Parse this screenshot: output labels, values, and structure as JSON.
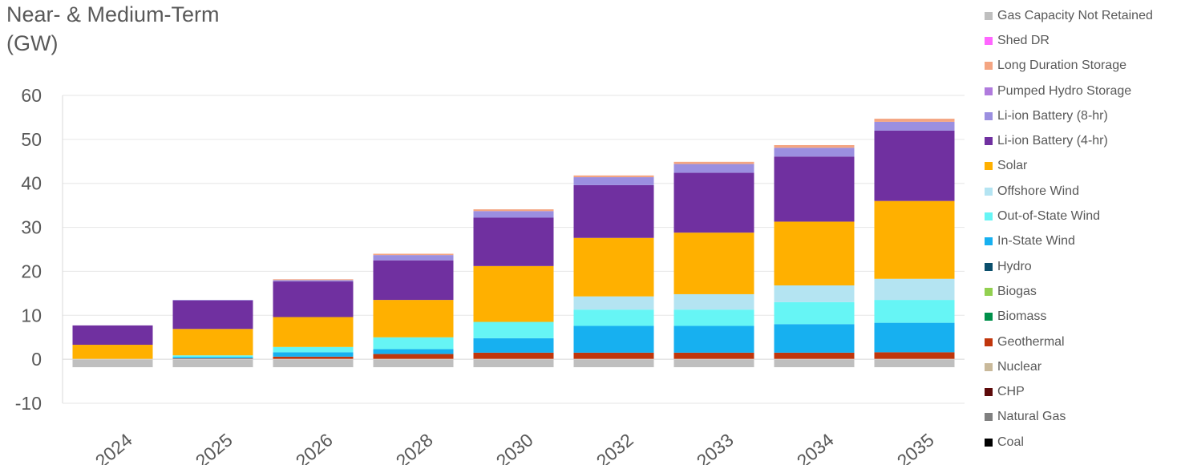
{
  "chart_data": {
    "type": "bar",
    "stacked": true,
    "title": "Near- & Medium-Term\n(GW)",
    "categories": [
      "2024",
      "2025",
      "2026",
      "2028",
      "2030",
      "2032",
      "2033",
      "2034",
      "2035"
    ],
    "ylim": [
      -10,
      60
    ],
    "yticks": [
      -10,
      0,
      10,
      20,
      30,
      40,
      50,
      60
    ],
    "grid": true,
    "legend_position": "right",
    "series": [
      {
        "name": "Gas Capacity Not Retained",
        "color": "#BFBFBF",
        "values": [
          -1.8,
          -1.8,
          -1.8,
          -1.8,
          -1.8,
          -1.8,
          -1.8,
          -1.8,
          -1.8
        ]
      },
      {
        "name": "Shed DR",
        "color": "#FF66FF",
        "values": [
          0,
          0,
          0,
          0,
          0,
          0,
          0,
          0,
          0
        ]
      },
      {
        "name": "Long Duration Storage",
        "color": "#F4A582",
        "values": [
          0,
          0,
          0.2,
          0.3,
          0.4,
          0.4,
          0.5,
          0.6,
          0.7
        ]
      },
      {
        "name": "Pumped Hydro Storage",
        "color": "#B07BDD",
        "values": [
          0,
          0,
          0,
          0,
          0,
          0,
          0,
          0,
          0
        ]
      },
      {
        "name": "Li-ion Battery (8-hr)",
        "color": "#9B8FE0",
        "values": [
          0,
          0.1,
          0.3,
          1.2,
          1.5,
          1.8,
          2.0,
          2.0,
          2.0
        ]
      },
      {
        "name": "Li-ion Battery (4-hr)",
        "color": "#7030A0",
        "values": [
          4.4,
          6.5,
          8.1,
          9.0,
          11.0,
          12.0,
          13.6,
          14.8,
          16.0
        ]
      },
      {
        "name": "Solar",
        "color": "#FFB000",
        "values": [
          3.3,
          6.0,
          6.8,
          8.5,
          12.7,
          13.3,
          14.0,
          14.5,
          17.7
        ]
      },
      {
        "name": "Offshore Wind",
        "color": "#B4E4F2",
        "values": [
          0,
          0,
          0,
          0,
          0,
          3.0,
          3.5,
          3.8,
          4.8
        ]
      },
      {
        "name": "Out-of-State Wind",
        "color": "#66F5F5",
        "values": [
          0,
          0.4,
          1.2,
          2.7,
          3.7,
          3.7,
          3.7,
          5.0,
          5.2
        ]
      },
      {
        "name": "In-State Wind",
        "color": "#17B0F0",
        "values": [
          0,
          0.3,
          1.0,
          1.1,
          3.3,
          6.1,
          6.1,
          6.5,
          6.7
        ]
      },
      {
        "name": "Hydro",
        "color": "#0B4F6C",
        "values": [
          0,
          0,
          0,
          0,
          0,
          0,
          0,
          0,
          0
        ]
      },
      {
        "name": "Biogas",
        "color": "#92D050",
        "values": [
          0,
          0,
          0,
          0,
          0,
          0,
          0,
          0,
          0
        ]
      },
      {
        "name": "Biomass",
        "color": "#00904A",
        "values": [
          0,
          0,
          0,
          0,
          0,
          0,
          0,
          0,
          0
        ]
      },
      {
        "name": "Geothermal",
        "color": "#C0360C",
        "values": [
          0,
          0.2,
          0.6,
          1.2,
          1.5,
          1.5,
          1.5,
          1.5,
          1.6
        ]
      },
      {
        "name": "Nuclear",
        "color": "#C9B99A",
        "values": [
          0,
          0,
          0,
          0,
          0,
          0,
          0,
          0,
          0
        ]
      },
      {
        "name": "CHP",
        "color": "#5C0A0A",
        "values": [
          0,
          0,
          0,
          0,
          0,
          0,
          0,
          0,
          0
        ]
      },
      {
        "name": "Natural Gas",
        "color": "#808080",
        "values": [
          0,
          0,
          0,
          0,
          0,
          0,
          0,
          0,
          0
        ]
      },
      {
        "name": "Coal",
        "color": "#000000",
        "values": [
          0,
          0,
          0,
          0,
          0,
          0,
          0,
          0,
          0
        ]
      }
    ]
  }
}
